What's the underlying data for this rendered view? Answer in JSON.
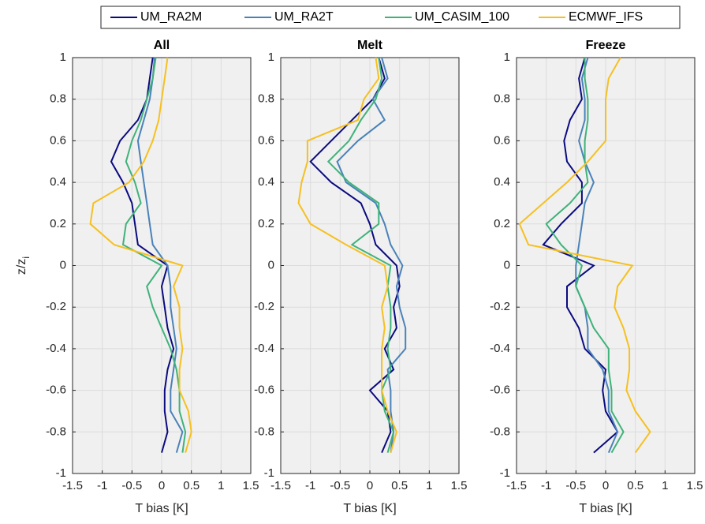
{
  "chart_data": [
    {
      "type": "line",
      "title": "All",
      "xlabel": "T bias [K]",
      "ylabel": {
        "text": "z/z",
        "subscript": "i"
      },
      "xlim": [
        -1.5,
        1.5
      ],
      "xticks": [
        -1.5,
        -1,
        -0.5,
        0,
        0.5,
        1,
        1.5
      ],
      "ylim": [
        -1,
        1
      ],
      "yticks": [
        -1,
        -0.8,
        -0.6,
        -0.4,
        -0.2,
        0,
        0.2,
        0.4,
        0.6,
        0.8,
        1
      ],
      "grid": true,
      "y": [
        -0.9,
        -0.8,
        -0.7,
        -0.6,
        -0.5,
        -0.4,
        -0.3,
        -0.2,
        -0.1,
        0,
        0.1,
        0.2,
        0.3,
        0.4,
        0.5,
        0.6,
        0.7,
        0.8,
        0.9,
        1
      ],
      "series": [
        {
          "name": "UM_RA2M",
          "color": "#0a0a80",
          "values": [
            0,
            0.1,
            0.05,
            0.05,
            0.1,
            0.2,
            0.1,
            0.05,
            0,
            0.1,
            -0.4,
            -0.45,
            -0.5,
            -0.65,
            -0.85,
            -0.7,
            -0.4,
            -0.25,
            -0.2,
            -0.15
          ]
        },
        {
          "name": "UM_RA2T",
          "color": "#4a82b8",
          "values": [
            0.25,
            0.35,
            0.15,
            0.15,
            0.2,
            0.25,
            0.2,
            0.15,
            0.15,
            0.1,
            -0.15,
            -0.2,
            -0.25,
            -0.3,
            -0.35,
            -0.4,
            -0.3,
            -0.2,
            -0.15,
            -0.12
          ]
        },
        {
          "name": "UM_CASIM_100",
          "color": "#3fb27a",
          "values": [
            0.35,
            0.4,
            0.3,
            0.3,
            0.25,
            0.15,
            0,
            -0.15,
            -0.25,
            0,
            -0.65,
            -0.6,
            -0.35,
            -0.45,
            -0.6,
            -0.5,
            -0.35,
            -0.25,
            -0.15,
            -0.1
          ]
        },
        {
          "name": "ECMWF_IFS",
          "color": "#f5c020",
          "values": [
            0.4,
            0.5,
            0.45,
            0.3,
            0.3,
            0.35,
            0.3,
            0.3,
            0.2,
            0.35,
            -0.8,
            -1.2,
            -1.15,
            -0.55,
            -0.3,
            -0.15,
            -0.05,
            0,
            0.05,
            0.1
          ]
        }
      ]
    },
    {
      "type": "line",
      "title": "Melt",
      "xlabel": "T bias [K]",
      "xlim": [
        -1.5,
        1.5
      ],
      "xticks": [
        -1.5,
        -1,
        -0.5,
        0,
        0.5,
        1,
        1.5
      ],
      "ylim": [
        -1,
        1
      ],
      "yticks": [
        -1,
        -0.8,
        -0.6,
        -0.4,
        -0.2,
        0,
        0.2,
        0.4,
        0.6,
        0.8,
        1
      ],
      "grid": true,
      "y": [
        -0.9,
        -0.8,
        -0.7,
        -0.6,
        -0.5,
        -0.4,
        -0.3,
        -0.2,
        -0.1,
        0,
        0.1,
        0.2,
        0.3,
        0.4,
        0.5,
        0.6,
        0.7,
        0.8,
        0.9,
        1
      ],
      "series": [
        {
          "color": "#0a0a80",
          "values": [
            0.2,
            0.35,
            0.3,
            0,
            0.4,
            0.25,
            0.45,
            0.4,
            0.5,
            0.45,
            0.1,
            0,
            -0.15,
            -0.65,
            -1,
            -0.65,
            -0.3,
            0.05,
            0.25,
            0.15
          ]
        },
        {
          "color": "#4a82b8",
          "values": [
            0.35,
            0.4,
            0.35,
            0.35,
            0.3,
            0.6,
            0.6,
            0.5,
            0.45,
            0.55,
            0.35,
            0.25,
            0.1,
            -0.4,
            -0.55,
            -0.2,
            0.25,
            0.05,
            0.3,
            0.2
          ]
        },
        {
          "color": "#3fb27a",
          "values": [
            0.3,
            0.4,
            0.25,
            0.2,
            0.35,
            0.3,
            0.35,
            0.35,
            0.3,
            0.35,
            -0.3,
            0.15,
            0.15,
            -0.35,
            -0.7,
            -0.35,
            -0.15,
            0.1,
            0.2,
            0.15
          ]
        },
        {
          "color": "#f5c020",
          "values": [
            0.35,
            0.45,
            0.3,
            0.2,
            0.2,
            0.2,
            0.25,
            0.2,
            0.3,
            0.25,
            -0.4,
            -1,
            -1.2,
            -1.15,
            -1.05,
            -1.05,
            -0.2,
            -0.1,
            0.15,
            0.1
          ]
        }
      ]
    },
    {
      "type": "line",
      "title": "Freeze",
      "xlabel": "T bias [K]",
      "xlim": [
        -1.5,
        1.5
      ],
      "xticks": [
        -1.5,
        -1,
        -0.5,
        0,
        0.5,
        1,
        1.5
      ],
      "ylim": [
        -1,
        1
      ],
      "yticks": [
        -1,
        -0.8,
        -0.6,
        -0.4,
        -0.2,
        0,
        0.2,
        0.4,
        0.6,
        0.8,
        1
      ],
      "grid": true,
      "y": [
        -0.9,
        -0.8,
        -0.7,
        -0.6,
        -0.5,
        -0.4,
        -0.3,
        -0.2,
        -0.1,
        0,
        0.1,
        0.2,
        0.3,
        0.4,
        0.5,
        0.6,
        0.7,
        0.8,
        0.9,
        1
      ],
      "series": [
        {
          "color": "#0a0a80",
          "values": [
            -0.2,
            0.2,
            0,
            -0.05,
            0,
            -0.35,
            -0.45,
            -0.65,
            -0.65,
            -0.2,
            -1.05,
            -0.75,
            -0.4,
            -0.4,
            -0.65,
            -0.7,
            -0.6,
            -0.4,
            -0.45,
            -0.35
          ]
        },
        {
          "color": "#4a82b8",
          "values": [
            0.05,
            0.2,
            0.05,
            0.05,
            -0.05,
            -0.3,
            -0.3,
            -0.35,
            -0.5,
            -0.5,
            -0.45,
            -0.4,
            -0.35,
            -0.2,
            -0.35,
            -0.45,
            -0.35,
            -0.35,
            -0.4,
            -0.3
          ]
        },
        {
          "color": "#3fb27a",
          "values": [
            0.1,
            0.3,
            0.1,
            0.1,
            0.05,
            0.05,
            -0.2,
            -0.35,
            -0.5,
            -0.4,
            -0.75,
            -1,
            -0.6,
            -0.3,
            -0.35,
            -0.35,
            -0.3,
            -0.3,
            -0.35,
            -0.35
          ]
        },
        {
          "color": "#f5c020",
          "values": [
            0.5,
            0.75,
            0.5,
            0.35,
            0.4,
            0.4,
            0.3,
            0.15,
            0.2,
            0.45,
            -1.3,
            -1.45,
            -1.05,
            -0.65,
            -0.3,
            0,
            0,
            0,
            0.05,
            0.25
          ]
        }
      ]
    }
  ]
}
